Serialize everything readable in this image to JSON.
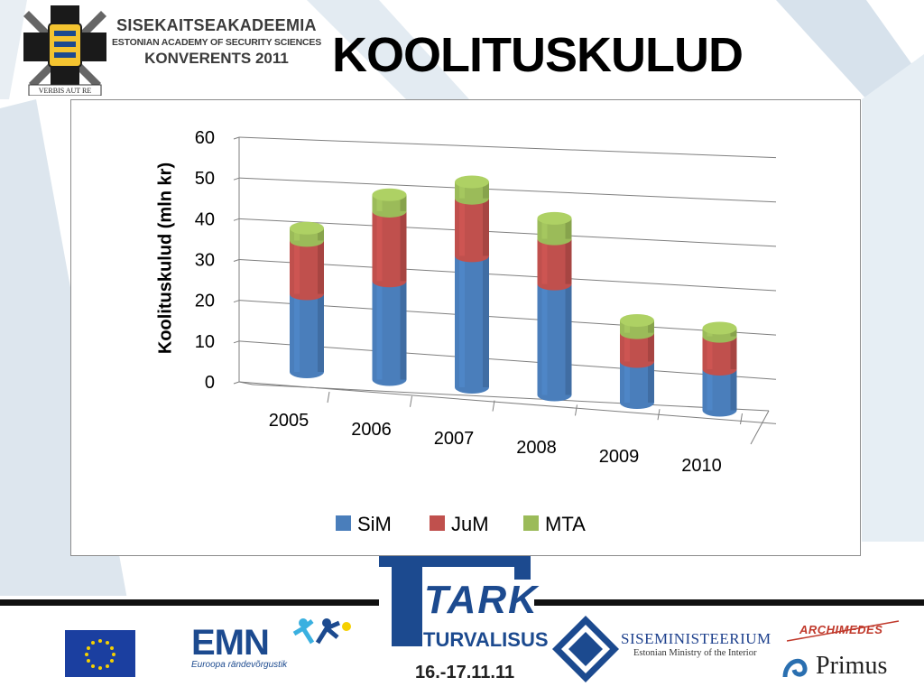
{
  "header": {
    "academy_name": "SISEKAITSEAKADEEMIA",
    "academy_en": "ESTONIAN ACADEMY OF SECURITY SCIENCES",
    "conference": "KONVERENTS 2011",
    "motto": "VERBIS AUT RE",
    "title": "KOOLITUSKULUD"
  },
  "colors": {
    "sim": "#4a7ebb",
    "jum": "#c0504d",
    "mta": "#9bbb59",
    "tark_blue": "#1c4a8f"
  },
  "chart_data": {
    "type": "bar",
    "stacked": true,
    "style": "3d-cylinder",
    "categories": [
      "2005",
      "2006",
      "2007",
      "2008",
      "2009",
      "2010"
    ],
    "series": [
      {
        "name": "SiM",
        "values": [
          19,
          24,
          32,
          27,
          10,
          10
        ]
      },
      {
        "name": "JuM",
        "values": [
          13,
          17,
          14,
          11,
          7,
          8
        ]
      },
      {
        "name": "MTA",
        "values": [
          3,
          4,
          4,
          5,
          3,
          2
        ]
      }
    ],
    "ylabel": "Koolituskulud (mln kr)",
    "xlabel": "",
    "ylim": [
      0,
      60
    ],
    "yticks": [
      "0",
      "10",
      "20",
      "30",
      "40",
      "50",
      "60"
    ],
    "grid": true,
    "legend": "bottom"
  },
  "footer": {
    "emn_name": "EMN",
    "emn_sub": "Euroopa rändevõrgustik",
    "tark": "TARK",
    "turvalisus": "TURVALISUS",
    "dates": "16.-17.11.11",
    "ministry": "SISEMINISTEERIUM",
    "ministry_en": "Estonian Ministry of the Interior",
    "archimedes": "ARCHIMEDES",
    "primus": "Primus"
  }
}
